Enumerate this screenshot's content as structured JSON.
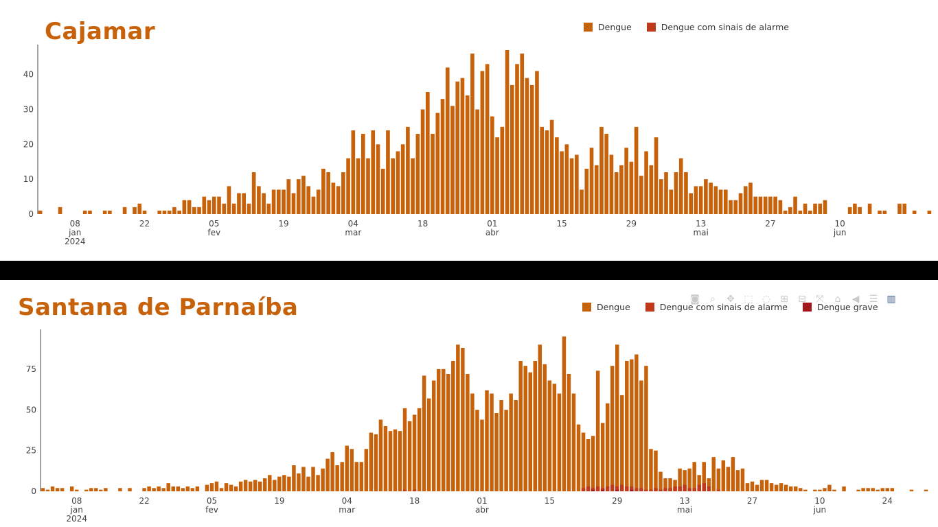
{
  "chart_data": [
    {
      "type": "bar",
      "title": "Cajamar",
      "legend_position": "top-right",
      "series": [
        {
          "name": "Dengue",
          "color": "#c8620a"
        },
        {
          "name": "Dengue com sinais de alarme",
          "color": "#c0391b"
        }
      ],
      "x_range": [
        "2024-01-01",
        "2024-06-21"
      ],
      "ylim": [
        0,
        47
      ],
      "y_ticks": [
        0,
        10,
        20,
        30,
        40
      ],
      "x_ticks": [
        {
          "date": "2024-01-08",
          "label": "08",
          "month": "jan",
          "year": "2024"
        },
        {
          "date": "2024-01-22",
          "label": "22"
        },
        {
          "date": "2024-02-05",
          "label": "05",
          "month": "fev"
        },
        {
          "date": "2024-02-19",
          "label": "19"
        },
        {
          "date": "2024-03-04",
          "label": "04",
          "month": "mar"
        },
        {
          "date": "2024-03-18",
          "label": "18"
        },
        {
          "date": "2024-04-01",
          "label": "01",
          "month": "abr"
        },
        {
          "date": "2024-04-15",
          "label": "15"
        },
        {
          "date": "2024-04-29",
          "label": "29"
        },
        {
          "date": "2024-05-13",
          "label": "13",
          "month": "mai"
        },
        {
          "date": "2024-05-27",
          "label": "27"
        },
        {
          "date": "2024-06-10",
          "label": "10",
          "month": "jun"
        }
      ],
      "values": [
        1,
        0,
        0,
        0,
        2,
        0,
        0,
        0,
        0,
        1,
        1,
        0,
        0,
        1,
        1,
        0,
        0,
        2,
        0,
        2,
        3,
        1,
        0,
        0,
        1,
        1,
        1,
        2,
        1,
        4,
        4,
        2,
        2,
        5,
        4,
        5,
        5,
        3,
        8,
        3,
        6,
        6,
        3,
        12,
        8,
        6,
        3,
        7,
        7,
        7,
        10,
        6,
        10,
        11,
        8,
        5,
        7,
        13,
        12,
        9,
        8,
        12,
        16,
        24,
        16,
        23,
        16,
        24,
        20,
        13,
        24,
        16,
        18,
        20,
        25,
        16,
        23,
        30,
        35,
        23,
        29,
        33,
        42,
        31,
        38,
        39,
        34,
        46,
        30,
        41,
        43,
        28,
        22,
        25,
        47,
        37,
        43,
        46,
        39,
        37,
        41,
        25,
        24,
        27,
        22,
        18,
        20,
        16,
        17,
        7,
        13,
        19,
        14,
        25,
        23,
        17,
        12,
        14,
        19,
        15,
        25,
        11,
        18,
        14,
        22,
        10,
        12,
        7,
        12,
        16,
        12,
        6,
        8,
        8,
        10,
        9,
        8,
        7,
        7,
        4,
        4,
        6,
        8,
        9,
        5,
        5,
        5,
        5,
        5,
        4,
        1,
        2,
        5,
        1,
        3,
        1,
        3,
        3,
        4,
        0,
        0,
        0,
        0,
        2,
        3,
        2,
        0,
        3,
        0,
        1,
        1,
        0,
        0,
        3,
        3,
        0,
        1,
        0,
        0,
        1
      ]
    },
    {
      "type": "bar",
      "title": "Santana de Parnaíba",
      "legend_position": "top-right",
      "series": [
        {
          "name": "Dengue",
          "color": "#c8620a"
        },
        {
          "name": "Dengue com sinais de alarme",
          "color": "#c0391b"
        },
        {
          "name": "Dengue grave",
          "color": "#a3181c"
        }
      ],
      "x_range": [
        "2024-01-01",
        "2024-06-26"
      ],
      "ylim": [
        0,
        96
      ],
      "y_ticks": [
        0,
        25,
        50,
        75
      ],
      "x_ticks": [
        {
          "date": "2024-01-08",
          "label": "08",
          "month": "jan",
          "year": "2024"
        },
        {
          "date": "2024-01-22",
          "label": "22"
        },
        {
          "date": "2024-02-05",
          "label": "05",
          "month": "fev"
        },
        {
          "date": "2024-02-19",
          "label": "19"
        },
        {
          "date": "2024-03-04",
          "label": "04",
          "month": "mar"
        },
        {
          "date": "2024-03-18",
          "label": "18"
        },
        {
          "date": "2024-04-01",
          "label": "01",
          "month": "abr"
        },
        {
          "date": "2024-04-15",
          "label": "15"
        },
        {
          "date": "2024-04-29",
          "label": "29"
        },
        {
          "date": "2024-05-13",
          "label": "13",
          "month": "mai"
        },
        {
          "date": "2024-05-27",
          "label": "27"
        },
        {
          "date": "2024-06-10",
          "label": "10",
          "month": "jun"
        },
        {
          "date": "2024-06-24",
          "label": "24"
        }
      ],
      "values": [
        2,
        1,
        3,
        2,
        2,
        0,
        3,
        1,
        0,
        1,
        2,
        2,
        1,
        2,
        0,
        0,
        2,
        0,
        2,
        0,
        0,
        2,
        3,
        2,
        3,
        2,
        5,
        3,
        3,
        2,
        3,
        2,
        3,
        0,
        4,
        5,
        6,
        2,
        5,
        4,
        3,
        6,
        7,
        6,
        7,
        6,
        8,
        10,
        7,
        9,
        10,
        9,
        16,
        11,
        15,
        9,
        15,
        10,
        14,
        20,
        24,
        16,
        18,
        28,
        26,
        18,
        18,
        26,
        36,
        35,
        44,
        40,
        37,
        38,
        37,
        51,
        43,
        47,
        51,
        71,
        57,
        68,
        75,
        75,
        72,
        80,
        90,
        88,
        72,
        60,
        50,
        44,
        62,
        60,
        48,
        56,
        50,
        60,
        56,
        80,
        77,
        73,
        80,
        90,
        78,
        68,
        66,
        60,
        95,
        72,
        60,
        41,
        36,
        32,
        34,
        74,
        42,
        54,
        77,
        90,
        59,
        80,
        81,
        84,
        68,
        77,
        26,
        25,
        12,
        8,
        8,
        7,
        14,
        13,
        14,
        18,
        10,
        18,
        8,
        21,
        14,
        19,
        15,
        21,
        13,
        14,
        5,
        6,
        4,
        7,
        7,
        5,
        4,
        5,
        4,
        3,
        3,
        2,
        1,
        0,
        1,
        1,
        2,
        4,
        1,
        0,
        3,
        0,
        0,
        1,
        2,
        2,
        2,
        1,
        2,
        2,
        2,
        0,
        0,
        0,
        1,
        0,
        0,
        1
      ],
      "alarm_values": [
        0,
        0,
        0,
        0,
        0,
        0,
        0,
        0,
        0,
        0,
        0,
        0,
        0,
        0,
        0,
        0,
        0,
        0,
        0,
        0,
        0,
        0,
        0,
        0,
        0,
        0,
        0,
        0,
        0,
        0,
        0,
        0,
        0,
        0,
        0,
        0,
        0,
        0,
        0,
        0,
        0,
        0,
        0,
        0,
        0,
        0,
        0,
        0,
        0,
        0,
        0,
        0,
        0,
        0,
        0,
        0,
        0,
        0,
        0,
        0,
        0,
        0,
        0,
        0,
        0,
        0,
        0,
        0,
        0,
        0,
        0,
        0,
        0,
        0,
        0,
        1,
        0,
        1,
        0,
        0,
        0,
        0,
        0,
        0,
        0,
        0,
        0,
        0,
        0,
        0,
        0,
        0,
        0,
        0,
        0,
        0,
        0,
        0,
        0,
        0,
        0,
        0,
        0,
        0,
        0,
        0,
        0,
        0,
        0,
        0,
        0,
        0,
        2,
        3,
        2,
        3,
        2,
        3,
        4,
        3,
        4,
        3,
        3,
        2,
        2,
        1,
        1,
        2,
        1,
        2,
        2,
        3,
        3,
        4,
        2,
        2,
        4,
        5,
        3,
        0,
        1,
        0,
        0,
        0,
        0,
        0,
        0,
        0,
        0,
        0,
        0,
        0,
        0,
        0,
        0,
        0,
        0,
        0,
        0,
        0,
        0,
        0,
        0,
        0,
        0,
        0,
        0,
        0,
        0,
        0,
        0,
        0,
        0,
        0,
        0,
        0,
        0,
        0,
        0,
        0,
        0,
        0,
        0,
        0,
        0,
        0
      ],
      "grave_values": [
        0,
        0,
        0,
        0,
        0,
        0,
        0,
        0,
        0,
        0,
        0,
        0,
        0,
        0,
        0,
        0,
        0,
        0,
        0,
        0,
        0,
        0,
        0,
        0,
        0,
        0,
        0,
        0,
        0,
        0,
        0,
        0,
        0,
        0,
        0,
        0,
        0,
        0,
        0,
        0,
        0,
        0,
        0,
        0,
        0,
        0,
        0,
        0,
        0,
        0,
        0,
        0,
        0,
        0,
        0,
        0,
        0,
        0,
        0,
        0,
        0,
        0,
        0,
        0,
        0,
        0,
        0,
        0,
        0,
        0,
        0,
        0,
        0,
        0,
        0,
        0,
        0,
        0,
        0,
        0,
        0,
        0,
        0,
        0,
        0,
        0,
        0,
        0,
        0,
        0,
        0,
        0,
        0,
        0,
        0,
        0,
        0,
        0,
        0,
        0,
        0,
        0,
        0,
        0,
        0,
        0,
        0,
        0,
        0,
        0,
        0,
        0,
        0,
        0,
        1,
        0,
        1,
        0,
        0,
        1,
        0,
        0,
        1,
        0,
        0,
        0,
        0,
        0,
        0,
        0,
        0,
        0,
        0,
        0,
        0,
        0,
        0,
        0,
        0,
        0,
        0,
        0,
        0,
        0,
        0,
        0,
        0,
        0,
        0,
        0,
        0,
        0,
        0,
        0,
        0,
        0,
        0,
        0,
        0,
        0,
        0,
        0,
        0,
        0,
        0,
        0,
        0,
        0,
        0,
        0,
        0,
        0,
        0,
        0,
        0,
        0,
        0,
        0,
        0,
        0,
        0,
        0
      ]
    }
  ],
  "modebar": {
    "icons": [
      "camera-icon",
      "zoom-icon",
      "pan-icon",
      "box-select-icon",
      "lasso-icon",
      "zoom-in-icon",
      "zoom-out-icon",
      "autoscale-icon",
      "reset-axes-icon",
      "spike-lines-icon",
      "compare-hover-icon",
      "plotly-logo-icon"
    ]
  }
}
